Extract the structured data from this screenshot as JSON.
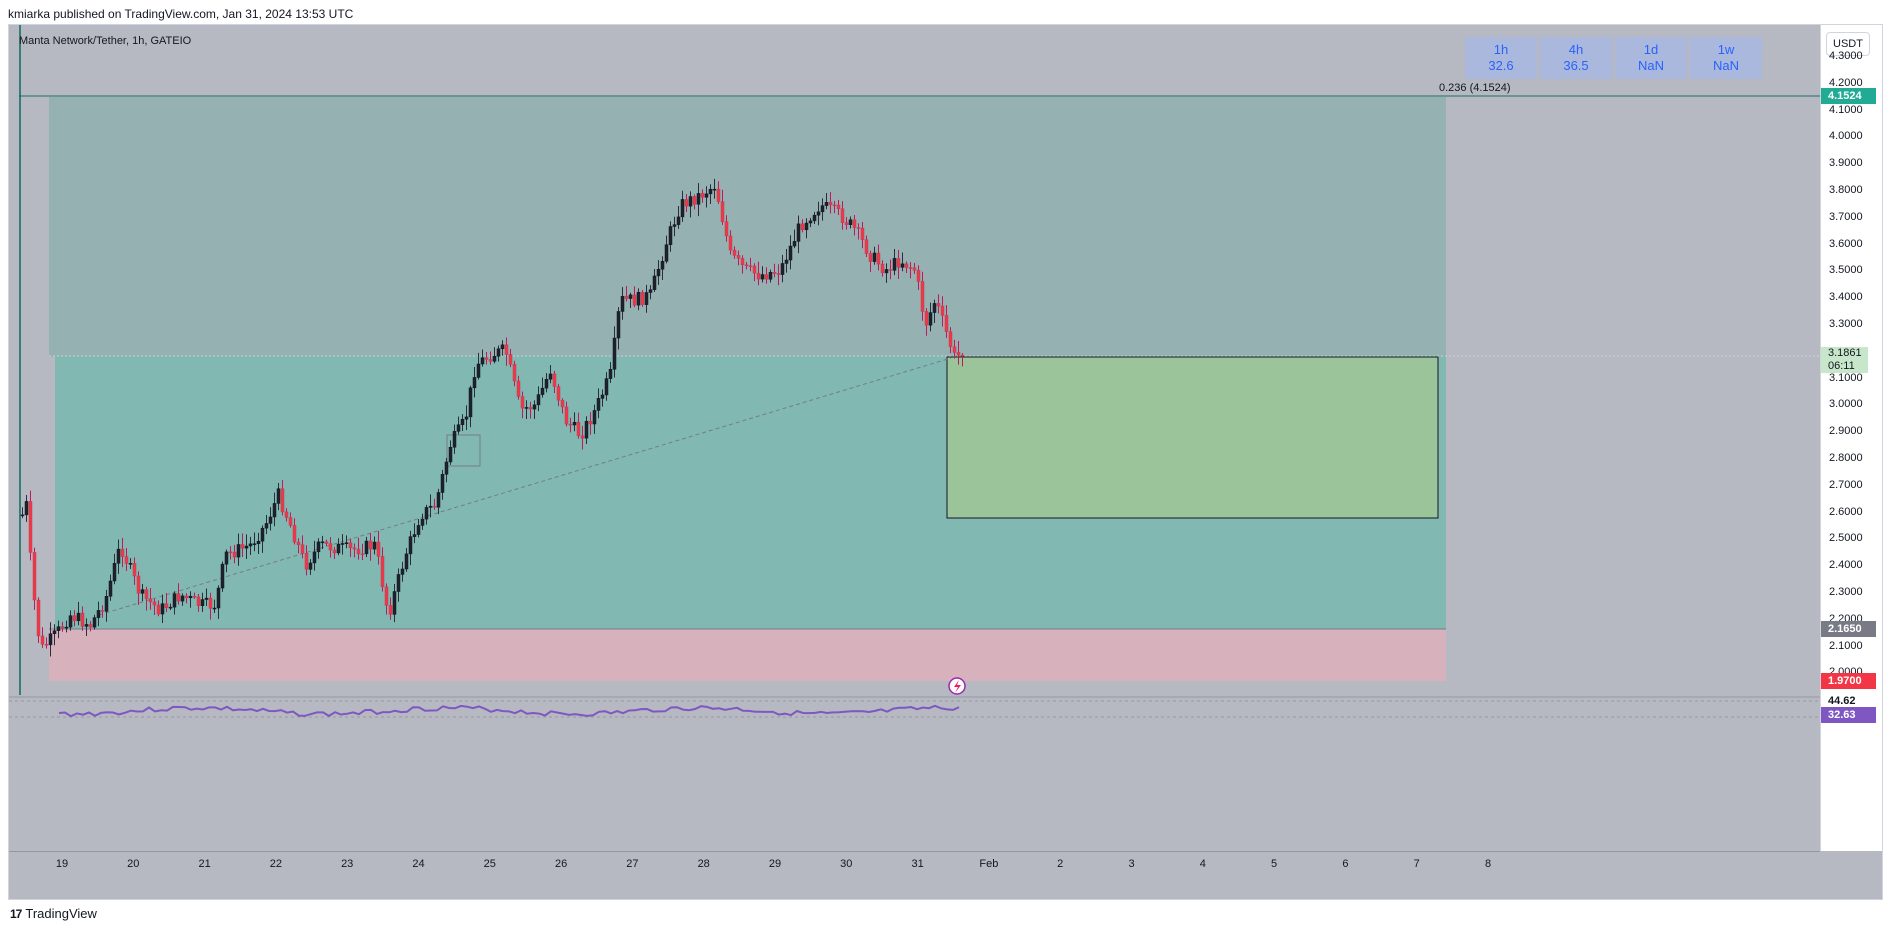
{
  "header": {
    "published": "kmiarka published on TradingView.com, Jan 31, 2024 13:53 UTC"
  },
  "symbol": {
    "title": "Manta Network/Tether, 1h, GATEIO"
  },
  "rsi_table": [
    {
      "tf": "1h",
      "value": "32.6"
    },
    {
      "tf": "4h",
      "value": "36.5"
    },
    {
      "tf": "1d",
      "value": "NaN"
    },
    {
      "tf": "1w",
      "value": "NaN"
    }
  ],
  "currency": "USDT",
  "price_axis": {
    "ticks": [
      "4.3000",
      "4.2000",
      "4.1000",
      "4.0000",
      "3.9000",
      "3.8000",
      "3.7000",
      "3.6000",
      "3.5000",
      "3.4000",
      "3.3000",
      "3.1000",
      "3.0000",
      "2.9000",
      "2.8000",
      "2.7000",
      "2.6000",
      "2.5000",
      "2.4000",
      "2.3000",
      "2.2000",
      "2.1000",
      "2.0000"
    ],
    "fib_badge": "4.1524",
    "current_price": "3.1861",
    "countdown": "06:11",
    "stop_badge": "2.1650",
    "low_badge": "1.9700",
    "rsi_upper": "44.62",
    "rsi_current": "32.63"
  },
  "fib_label": "0.236 (4.1524)",
  "time_axis": [
    "19",
    "20",
    "21",
    "22",
    "23",
    "24",
    "25",
    "26",
    "27",
    "28",
    "29",
    "30",
    "31",
    "Feb",
    "2",
    "3",
    "4",
    "5",
    "6",
    "7",
    "8"
  ],
  "brand": {
    "name": "TradingView",
    "logo": "17"
  },
  "colors": {
    "bull": "#131722",
    "bear": "#f23645",
    "target_zone": "#7eb7b1",
    "stop_zone": "#d7b2bd",
    "forecast": "#9bc49a",
    "rsi_line": "#7e57c2",
    "fib_badge": "#22ab94",
    "low_badge": "#f23645"
  }
}
